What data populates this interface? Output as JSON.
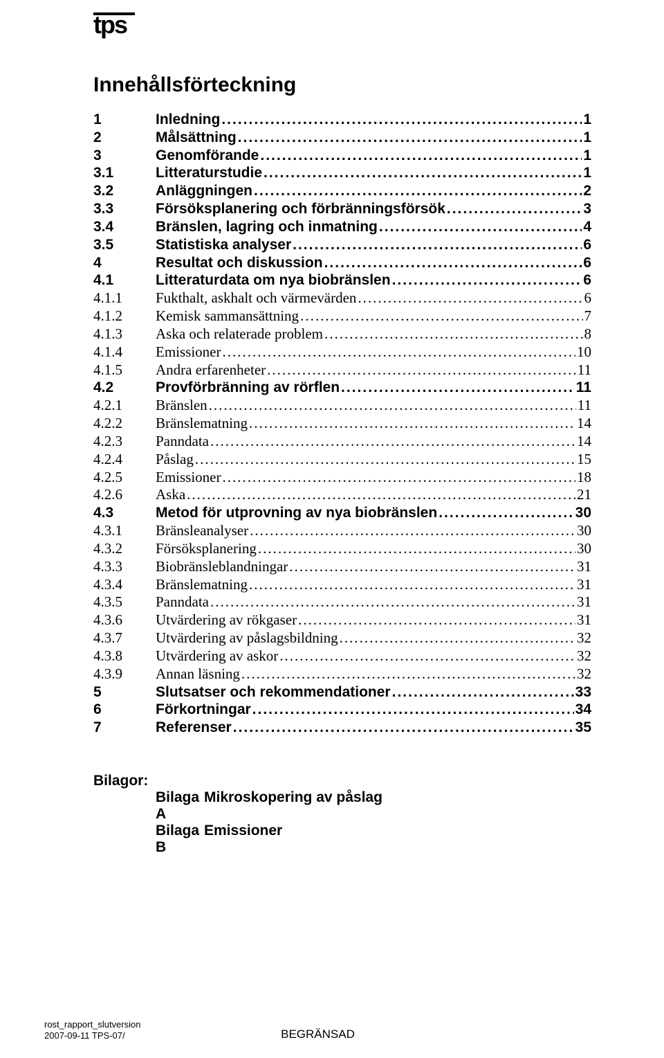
{
  "logo_text": "tps",
  "title": "Innehållsförteckning",
  "toc": [
    {
      "level": 1,
      "num": "1",
      "text": "Inledning",
      "page": "1"
    },
    {
      "level": 1,
      "num": "2",
      "text": "Målsättning",
      "page": "1"
    },
    {
      "level": 1,
      "num": "3",
      "text": "Genomförande",
      "page": "1"
    },
    {
      "level": 2,
      "num": "3.1",
      "text": "Litteraturstudie",
      "page": "1"
    },
    {
      "level": 2,
      "num": "3.2",
      "text": "Anläggningen",
      "page": "2"
    },
    {
      "level": 2,
      "num": "3.3",
      "text": "Försöksplanering och förbränningsförsök",
      "page": "3"
    },
    {
      "level": 2,
      "num": "3.4",
      "text": "Bränslen, lagring och inmatning",
      "page": "4"
    },
    {
      "level": 2,
      "num": "3.5",
      "text": "Statistiska analyser",
      "page": "6"
    },
    {
      "level": 1,
      "num": "4",
      "text": "Resultat och diskussion",
      "page": "6"
    },
    {
      "level": 2,
      "num": "4.1",
      "text": "Litteraturdata om nya biobränslen",
      "page": "6"
    },
    {
      "level": 3,
      "num": "4.1.1",
      "text": "Fukthalt, askhalt och värmevärden",
      "page": "6"
    },
    {
      "level": 3,
      "num": "4.1.2",
      "text": "Kemisk sammansättning",
      "page": "7"
    },
    {
      "level": 3,
      "num": "4.1.3",
      "text": "Aska och relaterade problem",
      "page": "8"
    },
    {
      "level": 3,
      "num": "4.1.4",
      "text": "Emissioner",
      "page": "10"
    },
    {
      "level": 3,
      "num": "4.1.5",
      "text": "Andra erfarenheter",
      "page": "11"
    },
    {
      "level": 2,
      "num": "4.2",
      "text": "Provförbränning av rörflen",
      "page": "11"
    },
    {
      "level": 3,
      "num": "4.2.1",
      "text": "Bränslen",
      "page": "11"
    },
    {
      "level": 3,
      "num": "4.2.2",
      "text": "Bränslematning",
      "page": "14"
    },
    {
      "level": 3,
      "num": "4.2.3",
      "text": "Panndata",
      "page": "14"
    },
    {
      "level": 3,
      "num": "4.2.4",
      "text": "Påslag",
      "page": "15"
    },
    {
      "level": 3,
      "num": "4.2.5",
      "text": "Emissioner",
      "page": "18"
    },
    {
      "level": 3,
      "num": "4.2.6",
      "text": "Aska",
      "page": "21"
    },
    {
      "level": 2,
      "num": "4.3",
      "text": "Metod för utprovning av nya biobränslen",
      "page": "30"
    },
    {
      "level": 3,
      "num": "4.3.1",
      "text": "Bränsleanalyser",
      "page": "30"
    },
    {
      "level": 3,
      "num": "4.3.2",
      "text": "Försöksplanering",
      "page": "30"
    },
    {
      "level": 3,
      "num": "4.3.3",
      "text": "Biobränsleblandningar",
      "page": "31"
    },
    {
      "level": 3,
      "num": "4.3.4",
      "text": "Bränslematning",
      "page": "31"
    },
    {
      "level": 3,
      "num": "4.3.5",
      "text": "Panndata",
      "page": "31"
    },
    {
      "level": 3,
      "num": "4.3.6",
      "text": "Utvärdering av rökgaser",
      "page": "31"
    },
    {
      "level": 3,
      "num": "4.3.7",
      "text": "Utvärdering av påslagsbildning",
      "page": "32"
    },
    {
      "level": 3,
      "num": "4.3.8",
      "text": "Utvärdering av askor",
      "page": "32"
    },
    {
      "level": 3,
      "num": "4.3.9",
      "text": "Annan läsning",
      "page": "32"
    },
    {
      "level": 1,
      "num": "5",
      "text": "Slutsatser och rekommendationer",
      "page": "33"
    },
    {
      "level": 1,
      "num": "6",
      "text": "Förkortningar",
      "page": "34"
    },
    {
      "level": 1,
      "num": "7",
      "text": "Referenser",
      "page": "35"
    }
  ],
  "appendix": {
    "heading": "Bilagor:",
    "items": [
      {
        "label": "Bilaga A",
        "text": "Mikroskopering av påslag"
      },
      {
        "label": "Bilaga B",
        "text": "Emissioner"
      }
    ]
  },
  "footer": {
    "left1": "rost_rapport_slutversion",
    "left2": "2007-09-11 TPS-07/",
    "center": "BEGRÄNSAD"
  }
}
